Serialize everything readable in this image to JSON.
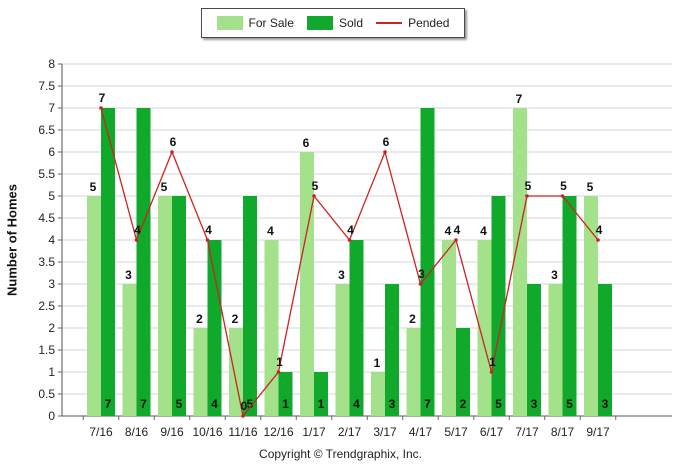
{
  "chart_data": {
    "type": "bar",
    "categories": [
      "7/16",
      "8/16",
      "9/16",
      "10/16",
      "11/16",
      "12/16",
      "1/17",
      "2/17",
      "3/17",
      "4/17",
      "5/17",
      "6/17",
      "7/17",
      "8/17",
      "9/17"
    ],
    "series": [
      {
        "name": "For Sale",
        "type": "bar",
        "color": "#a3e18a",
        "values": [
          5,
          3,
          5,
          2,
          2,
          4,
          6,
          3,
          1,
          2,
          4,
          4,
          7,
          3,
          5
        ]
      },
      {
        "name": "Sold",
        "type": "bar",
        "color": "#11a92c",
        "values": [
          7,
          7,
          5,
          4,
          5,
          1,
          1,
          4,
          3,
          7,
          2,
          5,
          3,
          5,
          3
        ]
      },
      {
        "name": "Pended",
        "type": "line",
        "color": "#cc2222",
        "values": [
          7,
          4,
          6,
          4,
          0,
          1,
          5,
          4,
          6,
          3,
          4,
          1,
          5,
          5,
          4
        ]
      }
    ],
    "title": "",
    "xlabel": "",
    "ylabel": "Number of Homes",
    "ylim": [
      0,
      8
    ],
    "ytick_step": 0.5,
    "grid": true,
    "legend_position": "top-center"
  },
  "footer": "Copyright © Trendgraphix, Inc."
}
